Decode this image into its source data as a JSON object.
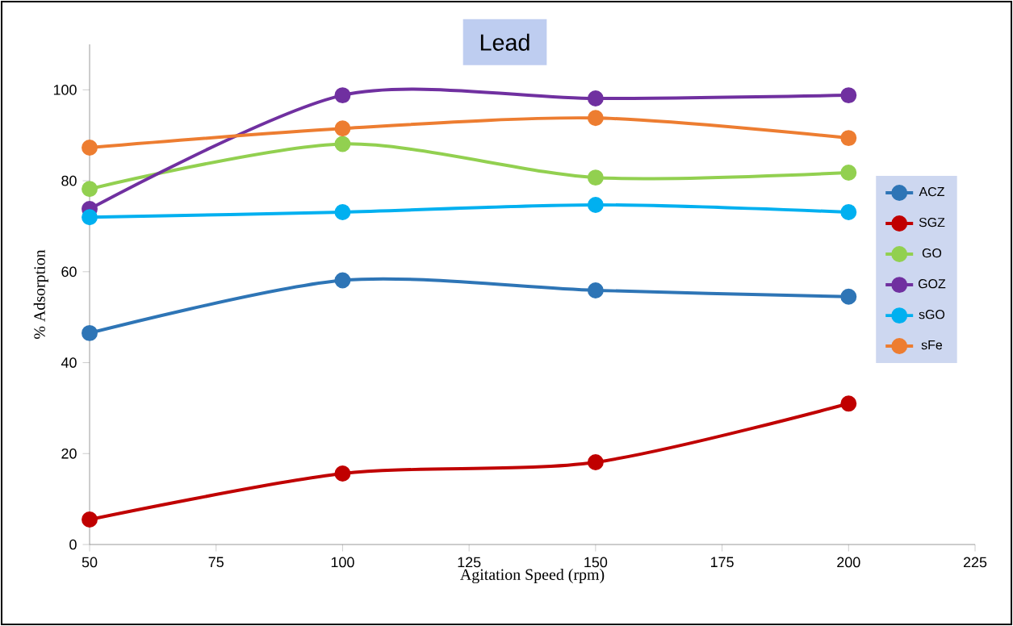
{
  "chart_data": {
    "type": "line",
    "title": "Lead",
    "xlabel": "Agitation Speed (rpm)",
    "ylabel": "% Adsorption",
    "x": [
      50,
      100,
      150,
      200
    ],
    "series": [
      {
        "name": "ACZ",
        "color": "#2e75b6",
        "values": [
          46.5,
          58.1,
          55.9,
          54.5
        ]
      },
      {
        "name": "SGZ",
        "color": "#c00000",
        "values": [
          5.5,
          15.6,
          18.1,
          31.0
        ]
      },
      {
        "name": "GO",
        "color": "#92d050",
        "values": [
          78.2,
          88.1,
          80.7,
          81.8
        ]
      },
      {
        "name": "GOZ",
        "color": "#7030a0",
        "values": [
          73.8,
          98.8,
          98.1,
          98.8
        ]
      },
      {
        "name": "sGO",
        "color": "#00b0f0",
        "values": [
          72.0,
          73.1,
          74.7,
          73.1
        ]
      },
      {
        "name": "sFe",
        "color": "#ed7d31",
        "values": [
          87.3,
          91.5,
          93.8,
          89.4
        ]
      }
    ],
    "xlim": [
      50,
      225
    ],
    "xticks": [
      50,
      75,
      100,
      125,
      150,
      175,
      200,
      225
    ],
    "ylim": [
      0,
      110
    ],
    "yticks": [
      0,
      20,
      40,
      60,
      80,
      100
    ],
    "grid": false,
    "legend": "right",
    "marker": "circle",
    "line_style": "solid"
  }
}
